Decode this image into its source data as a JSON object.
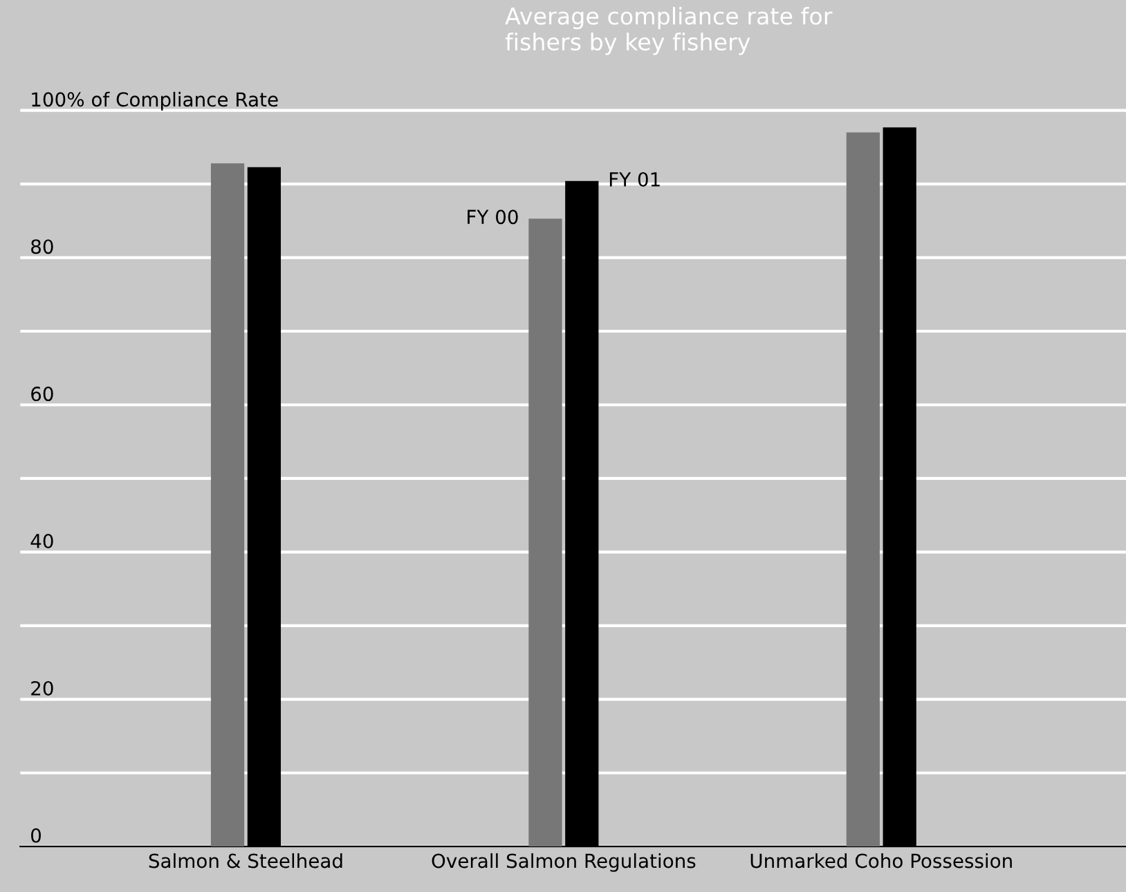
{
  "chart_data": {
    "type": "bar",
    "title": "Average compliance rate for\nfishers by key fishery",
    "categories": [
      "Salmon & Steelhead",
      "Overall Salmon Regulations",
      "Unmarked Coho Possession"
    ],
    "series": [
      {
        "name": "FY 00",
        "color": "#777777",
        "values": [
          92.8,
          85.3,
          97.0
        ]
      },
      {
        "name": "FY 01",
        "color": "#000000",
        "values": [
          92.3,
          90.4,
          97.7
        ]
      }
    ],
    "ylim": [
      0,
      115
    ],
    "yticks": [
      0,
      {
        "value": 10,
        "label": null
      },
      20,
      {
        "value": 30,
        "label": null
      },
      40,
      {
        "value": 50,
        "label": null
      },
      60,
      {
        "value": 70,
        "label": null
      },
      80,
      {
        "value": 90,
        "label": null
      },
      {
        "value": 100,
        "label": "100% of Compliance Rate"
      }
    ],
    "grid": "y",
    "legend": false
  }
}
